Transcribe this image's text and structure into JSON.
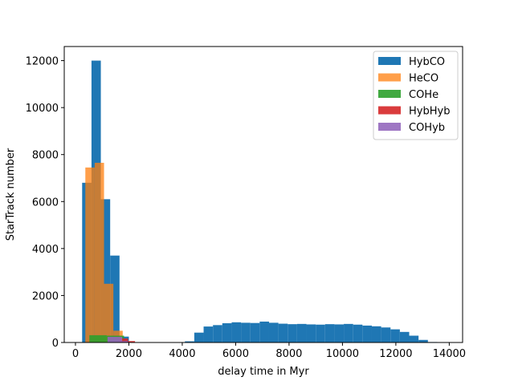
{
  "chart_data": {
    "type": "bar",
    "xlabel": "delay time in Myr",
    "ylabel": "StarTrack number",
    "xlim": [
      -420,
      14500
    ],
    "ylim": [
      0,
      12600
    ],
    "xticks": [
      0,
      2000,
      4000,
      6000,
      8000,
      10000,
      12000,
      14000
    ],
    "yticks": [
      0,
      2000,
      4000,
      6000,
      8000,
      10000,
      12000
    ],
    "grid": false,
    "legend_position": "top-right",
    "series": [
      {
        "name": "HybCO",
        "color": "#1f77b4",
        "opacity": 1.0,
        "bin_edges": [
          250,
          600,
          950,
          1300,
          1650,
          2000,
          2350,
          2700,
          3050,
          3400,
          3750,
          4100,
          4450,
          4800,
          5150,
          5500,
          5850,
          6200,
          6550,
          6900,
          7250,
          7600,
          7950,
          8300,
          8650,
          9000,
          9350,
          9700,
          10050,
          10400,
          10750,
          11100,
          11450,
          11800,
          12150,
          12500,
          12850,
          13200,
          13550
        ],
        "counts": [
          6800,
          12000,
          6100,
          3700,
          250,
          0,
          0,
          0,
          0,
          0,
          0,
          50,
          420,
          680,
          740,
          820,
          860,
          840,
          830,
          890,
          840,
          800,
          780,
          790,
          770,
          760,
          780,
          770,
          790,
          760,
          720,
          690,
          640,
          560,
          450,
          290,
          110,
          20
        ]
      },
      {
        "name": "HeCO",
        "color": "#ff7f0e",
        "opacity": 0.75,
        "bin_edges": [
          370,
          720,
          1070,
          1420,
          1770,
          2120
        ],
        "counts": [
          7450,
          7650,
          2500,
          500,
          0
        ]
      },
      {
        "name": "COHe",
        "color": "#2ca02c",
        "opacity": 0.9,
        "bin_edges": [
          520,
          1170,
          1820,
          2120
        ],
        "counts": [
          310,
          290,
          0
        ]
      },
      {
        "name": "HybHyb",
        "color": "#d62728",
        "opacity": 0.9,
        "bin_edges": [
          1650,
          1970,
          2230
        ],
        "counts": [
          170,
          60
        ]
      },
      {
        "name": "COHyb",
        "color": "#9467bd",
        "opacity": 0.9,
        "bin_edges": [
          1200,
          1750,
          1960
        ],
        "counts": [
          240,
          60
        ]
      }
    ]
  }
}
